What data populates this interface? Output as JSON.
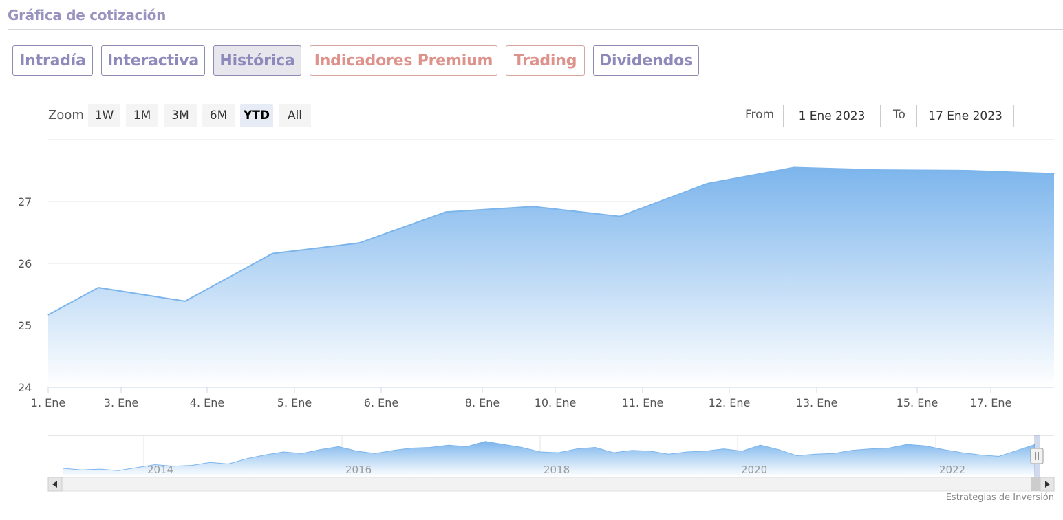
{
  "section_title": "Gráfica de cotización",
  "tabs": [
    {
      "label": "Intradía",
      "active": false,
      "premium": false
    },
    {
      "label": "Interactiva",
      "active": false,
      "premium": false
    },
    {
      "label": "Histórica",
      "active": true,
      "premium": false
    },
    {
      "label": "Indicadores Premium",
      "active": false,
      "premium": true
    },
    {
      "label": "Trading",
      "active": false,
      "premium": true
    },
    {
      "label": "Dividendos",
      "active": false,
      "premium": false
    }
  ],
  "range_selector": {
    "zoom_label": "Zoom",
    "buttons": [
      {
        "label": "1W",
        "active": false
      },
      {
        "label": "1M",
        "active": false
      },
      {
        "label": "3M",
        "active": false
      },
      {
        "label": "6M",
        "active": false
      },
      {
        "label": "YTD",
        "active": true
      },
      {
        "label": "All",
        "active": false
      }
    ],
    "from_label": "From",
    "from_value": "1 Ene 2023",
    "to_label": "To",
    "to_value": "17 Ene 2023"
  },
  "colors": {
    "series_line": "#7cb5ec",
    "area_top": "#7cb5ec",
    "area_bottom": "#ffffff",
    "tab_text": "#8e89bb",
    "premium_text": "#dd938c",
    "gridline": "#e6e6e6"
  },
  "chart_data": {
    "type": "area",
    "title": "",
    "xlabel": "",
    "ylabel": "",
    "grid": true,
    "ylim": [
      24,
      28
    ],
    "yticks": [
      24,
      25,
      26,
      27
    ],
    "x_tick_labels": [
      "1. Ene",
      "3. Ene",
      "4. Ene",
      "5. Ene",
      "6. Ene",
      "8. Ene",
      "10. Ene",
      "11. Ene",
      "12. Ene",
      "13. Ene",
      "15. Ene",
      "17. Ene"
    ],
    "series": [
      {
        "points": [
          {
            "x": "1. Ene",
            "y": 25.17
          },
          {
            "x": "2. Ene",
            "y": 25.61
          },
          {
            "x": "3. Ene",
            "y": 25.39
          },
          {
            "x": "4. Ene",
            "y": 26.16
          },
          {
            "x": "5. Ene",
            "y": 26.33
          },
          {
            "x": "6. Ene",
            "y": 26.83
          },
          {
            "x": "8. Ene",
            "y": 26.92
          },
          {
            "x": "10. Ene",
            "y": 26.76
          },
          {
            "x": "11. Ene",
            "y": 27.29
          },
          {
            "x": "12. Ene",
            "y": 27.55
          },
          {
            "x": "13. Ene",
            "y": 27.51
          },
          {
            "x": "15. Ene",
            "y": 27.5
          },
          {
            "x": "17. Ene",
            "y": 27.45
          }
        ]
      }
    ],
    "navigator": {
      "year_labels": [
        "2014",
        "2016",
        "2018",
        "2020",
        "2022"
      ],
      "values": [
        24.1,
        23.9,
        24.0,
        23.8,
        24.2,
        24.6,
        24.4,
        24.5,
        24.9,
        24.7,
        25.4,
        25.9,
        26.3,
        26.1,
        26.6,
        27.0,
        26.4,
        26.1,
        26.5,
        26.8,
        26.9,
        27.2,
        27.0,
        27.7,
        27.3,
        26.9,
        26.3,
        26.2,
        26.7,
        26.9,
        26.2,
        26.5,
        26.4,
        26.0,
        26.3,
        26.4,
        26.7,
        26.4,
        27.2,
        26.6,
        25.8,
        26.0,
        26.1,
        26.5,
        26.7,
        26.8,
        27.3,
        27.1,
        26.6,
        26.2,
        25.9,
        25.7,
        26.5,
        27.3
      ]
    }
  },
  "credit": "Estrategias de Inversión"
}
